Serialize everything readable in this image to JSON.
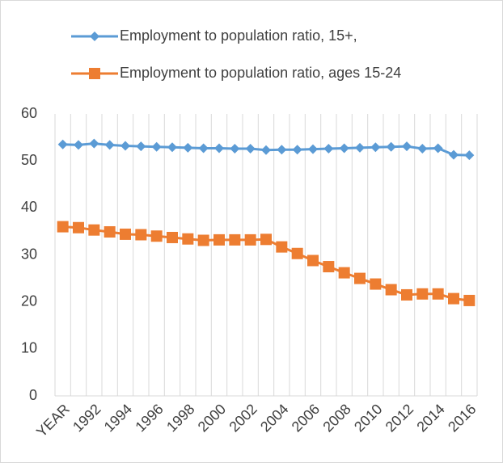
{
  "chart_data": {
    "type": "line",
    "categories": [
      "YEAR",
      null,
      "1992",
      null,
      "1994",
      null,
      "1996",
      null,
      "1998",
      null,
      "2000",
      null,
      "2002",
      null,
      "2004",
      null,
      "2006",
      null,
      "2008",
      null,
      "2010",
      null,
      "2012",
      null,
      "2014",
      null,
      "2016"
    ],
    "series": [
      {
        "name": "Employment to population ratio, 15+,",
        "color": "#5b9bd5",
        "marker": "diamond",
        "values": [
          53.5,
          53.4,
          53.7,
          53.4,
          53.2,
          53.1,
          53.0,
          52.9,
          52.8,
          52.7,
          52.7,
          52.6,
          52.6,
          52.3,
          52.4,
          52.4,
          52.5,
          52.6,
          52.7,
          52.8,
          52.9,
          53.0,
          53.1,
          52.6,
          52.7,
          51.3,
          51.2
        ]
      },
      {
        "name": "Employment to population ratio, ages 15-24",
        "color": "#ed7d31",
        "marker": "square",
        "values": [
          36,
          35.8,
          35.3,
          34.9,
          34.4,
          34.3,
          34,
          33.7,
          33.4,
          33.1,
          33.2,
          33.2,
          33.2,
          33.3,
          31.7,
          30.3,
          28.8,
          27.5,
          26.2,
          25,
          23.8,
          22.6,
          21.5,
          21.7,
          21.7,
          20.7,
          20.3
        ]
      }
    ],
    "ylim": [
      0,
      60
    ],
    "yticks": [
      0,
      10,
      20,
      30,
      40,
      50,
      60
    ],
    "grid": "vertical"
  }
}
